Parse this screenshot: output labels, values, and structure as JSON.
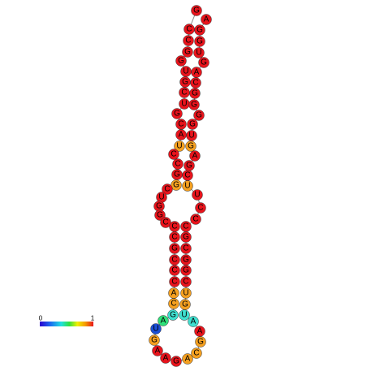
{
  "nodes": [
    {
      "label": "G",
      "color": "#e8141c"
    },
    {
      "label": "C",
      "color": "#e8141c"
    },
    {
      "label": "C",
      "color": "#e8141c"
    },
    {
      "label": "G",
      "color": "#e8141c"
    },
    {
      "label": "G",
      "color": "#e8141c"
    },
    {
      "label": "U",
      "color": "#e8141c"
    },
    {
      "label": "G",
      "color": "#e8141c"
    },
    {
      "label": "C",
      "color": "#e8141c"
    },
    {
      "label": "U",
      "color": "#e8141c"
    },
    {
      "label": "G",
      "color": "#e8141c"
    },
    {
      "label": "C",
      "color": "#e8141c"
    },
    {
      "label": "A",
      "color": "#e8141c"
    },
    {
      "label": "U",
      "color": "#f5a020"
    },
    {
      "label": "C",
      "color": "#e8141c"
    },
    {
      "label": "C",
      "color": "#e8141c"
    },
    {
      "label": "G",
      "color": "#e8141c"
    },
    {
      "label": "G",
      "color": "#f5a020"
    },
    {
      "label": "C",
      "color": "#e8141c"
    },
    {
      "label": "U",
      "color": "#e8141c"
    },
    {
      "label": "G",
      "color": "#e8141c"
    },
    {
      "label": "G",
      "color": "#e8141c"
    },
    {
      "label": "C",
      "color": "#e8141c"
    },
    {
      "label": "C",
      "color": "#e8141c"
    },
    {
      "label": "C",
      "color": "#e8141c"
    },
    {
      "label": "G",
      "color": "#e8141c"
    },
    {
      "label": "C",
      "color": "#e8141c"
    },
    {
      "label": "C",
      "color": "#e8141c"
    },
    {
      "label": "C",
      "color": "#e8141c"
    },
    {
      "label": "A",
      "color": "#f5a020"
    },
    {
      "label": "C",
      "color": "#f5a020"
    },
    {
      "label": "G",
      "color": "#3fe0d0"
    },
    {
      "label": "A",
      "color": "#2fe07a"
    },
    {
      "label": "U",
      "color": "#1a4fd6"
    },
    {
      "label": "G",
      "color": "#f5a020"
    },
    {
      "label": "A",
      "color": "#e8141c"
    },
    {
      "label": "A",
      "color": "#e8141c"
    },
    {
      "label": "G",
      "color": "#e8141c"
    },
    {
      "label": "A",
      "color": "#f5a020"
    },
    {
      "label": "C",
      "color": "#f5a020"
    },
    {
      "label": "G",
      "color": "#f5a020"
    },
    {
      "label": "A",
      "color": "#e8141c"
    },
    {
      "label": "A",
      "color": "#3fe0d0"
    },
    {
      "label": "U",
      "color": "#3fe0d0"
    },
    {
      "label": "G",
      "color": "#f5a020"
    },
    {
      "label": "U",
      "color": "#f5a020"
    },
    {
      "label": "C",
      "color": "#e8141c"
    },
    {
      "label": "G",
      "color": "#e8141c"
    },
    {
      "label": "G",
      "color": "#e8141c"
    },
    {
      "label": "C",
      "color": "#e8141c"
    },
    {
      "label": "G",
      "color": "#e8141c"
    },
    {
      "label": "C",
      "color": "#e8141c"
    },
    {
      "label": "C",
      "color": "#e8141c"
    },
    {
      "label": "C",
      "color": "#e8141c"
    },
    {
      "label": "U",
      "color": "#e8141c"
    },
    {
      "label": "U",
      "color": "#f5a020"
    },
    {
      "label": "C",
      "color": "#e8141c"
    },
    {
      "label": "G",
      "color": "#e8141c"
    },
    {
      "label": "A",
      "color": "#e8141c"
    },
    {
      "label": "G",
      "color": "#f5a020"
    },
    {
      "label": "U",
      "color": "#e8141c"
    },
    {
      "label": "G",
      "color": "#e8141c"
    },
    {
      "label": "G",
      "color": "#e8141c"
    },
    {
      "label": "G",
      "color": "#e8141c"
    },
    {
      "label": "G",
      "color": "#e8141c"
    },
    {
      "label": "C",
      "color": "#e8141c"
    },
    {
      "label": "A",
      "color": "#e8141c"
    },
    {
      "label": "G",
      "color": "#e8141c"
    },
    {
      "label": "U",
      "color": "#e8141c"
    },
    {
      "label": "G",
      "color": "#e8141c"
    },
    {
      "label": "G",
      "color": "#e8141c"
    },
    {
      "label": "A",
      "color": "#e8141c"
    }
  ],
  "scale": {
    "min": 0,
    "max": 1
  }
}
